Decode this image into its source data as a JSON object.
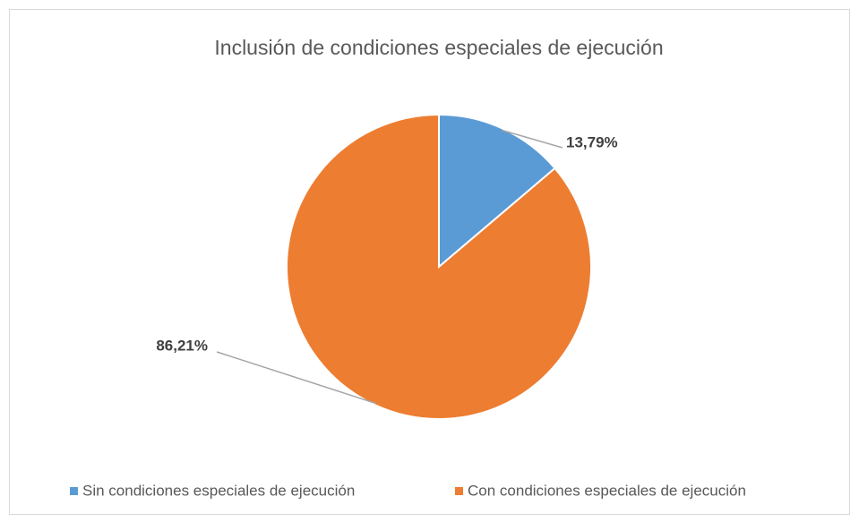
{
  "chart_data": {
    "type": "pie",
    "title": "Inclusión de condiciones especiales de ejecución",
    "categories": [
      "Sin condiciones especiales de ejecución",
      "Con condiciones especiales de ejecución"
    ],
    "values": [
      13.79,
      86.21
    ],
    "value_labels": [
      "13,79%",
      "86,21%"
    ],
    "colors": [
      "#5b9bd5",
      "#ed7d31"
    ],
    "legend": "bottom"
  }
}
